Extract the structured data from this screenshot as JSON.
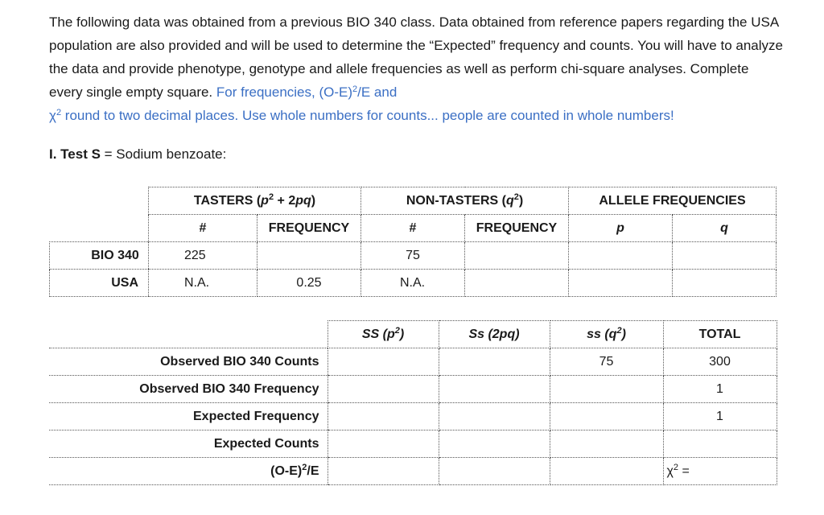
{
  "intro": {
    "text_main": "The following data was obtained from a previous BIO 340 class. Data obtained from reference papers regarding the USA population are also provided and will be used to determine the “Expected” frequency and counts. You will have to analyze the data and provide phenotype, genotype and allele frequencies as well as perform chi-square analyses. Complete every single empty square.",
    "text_blue_1": "For frequencies, (O-E)",
    "text_blue_2": "/E and",
    "text_blue_3": "χ",
    "text_blue_4": " round to two decimal places. Use whole numbers for counts... people are counted in whole numbers!",
    "sup2": "2"
  },
  "section": {
    "numeral": "I. Test S",
    "rest": " = Sodium benzoate:"
  },
  "table1": {
    "tasters_header_a": "TASTERS (",
    "tasters_header_p": "p",
    "tasters_header_b": " + 2",
    "tasters_header_pq": "pq",
    "tasters_header_c": ")",
    "nontasters_header_a": "NON-TASTERS (",
    "nontasters_header_q": "q",
    "nontasters_header_c": ")",
    "allele_header": "ALLELE FREQUENCIES",
    "sub_count": "#",
    "sub_freq": "FREQUENCY",
    "sub_p": "p",
    "sub_q": "q",
    "rows": [
      {
        "label": "BIO 340",
        "t_count": "225",
        "t_freq": "",
        "n_count": "75",
        "n_freq": "",
        "p": "",
        "q": ""
      },
      {
        "label": "USA",
        "t_count": "N.A.",
        "t_freq": "0.25",
        "n_count": "N.A.",
        "n_freq": "",
        "p": "",
        "q": ""
      }
    ]
  },
  "table2": {
    "h_ss_upper": "SS (p",
    "h_ss_mid": "Ss (2pq)",
    "h_ss_lower": "ss (q",
    "h_close": ")",
    "h_total": "TOTAL",
    "rows": [
      {
        "label": "Observed BIO 340 Counts",
        "SS": "",
        "Ss": "",
        "ss": "75",
        "total": "300"
      },
      {
        "label": "Observed BIO 340 Frequency",
        "SS": "",
        "Ss": "",
        "ss": "",
        "total": "1"
      },
      {
        "label": "Expected Frequency",
        "SS": "",
        "Ss": "",
        "ss": "",
        "total": "1"
      },
      {
        "label": "Expected Counts",
        "SS": "",
        "Ss": "",
        "ss": "",
        "total": ""
      }
    ],
    "oe_label_a": "(O-E)",
    "oe_label_b": "/E",
    "chi_label": "χ",
    "chi_eq": " ="
  }
}
